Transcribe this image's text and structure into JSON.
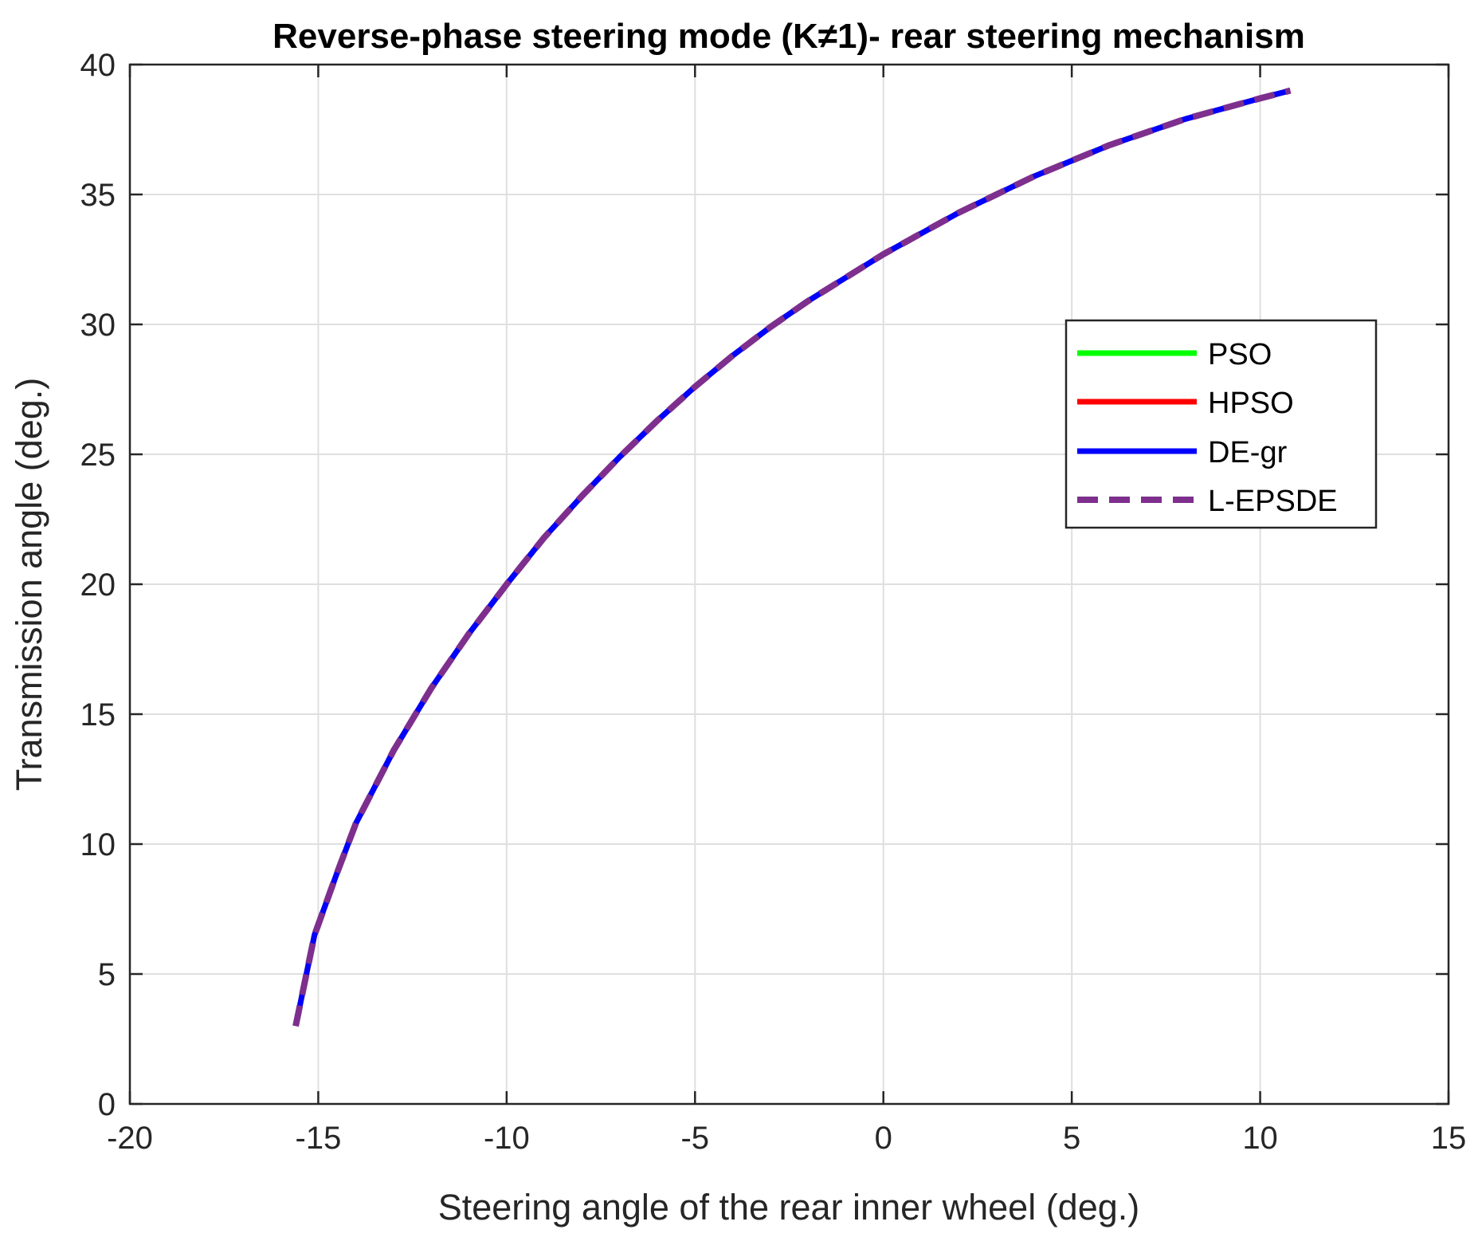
{
  "chart_data": {
    "type": "line",
    "title": "Reverse-phase steering mode (K≠1)- rear steering mechanism",
    "xlabel": "Steering angle of the rear inner wheel (deg.)",
    "ylabel": "Transmission angle (deg.)",
    "xlim": [
      -20,
      15
    ],
    "ylim": [
      0,
      40
    ],
    "xticks": [
      -20,
      -15,
      -10,
      -5,
      0,
      5,
      10,
      15
    ],
    "yticks": [
      0,
      5,
      10,
      15,
      20,
      25,
      30,
      35,
      40
    ],
    "xtick_labels": [
      "-20",
      "-15",
      "-10",
      "-5",
      "0",
      "5",
      "10",
      "15"
    ],
    "ytick_labels": [
      "0",
      "5",
      "10",
      "15",
      "20",
      "25",
      "30",
      "35",
      "40"
    ],
    "grid": true,
    "legend_position": "upper-right",
    "x": [
      -15.6,
      -15.1,
      -14.5,
      -14.0,
      -13.0,
      -12.0,
      -11.0,
      -10.0,
      -9.0,
      -8.0,
      -7.0,
      -6.0,
      -5.0,
      -4.0,
      -3.0,
      -2.0,
      -1.0,
      0.0,
      1.0,
      2.0,
      3.0,
      4.0,
      5.0,
      6.0,
      7.0,
      8.0,
      9.0,
      10.0,
      10.8
    ],
    "series": [
      {
        "name": "PSO",
        "color": "#00ff00",
        "style": "solid",
        "values": [
          3.0,
          6.5,
          8.9,
          10.8,
          13.6,
          16.0,
          18.1,
          20.0,
          21.8,
          23.4,
          24.9,
          26.3,
          27.6,
          28.8,
          29.9,
          30.9,
          31.8,
          32.7,
          33.5,
          34.3,
          35.0,
          35.7,
          36.3,
          36.9,
          37.4,
          37.9,
          38.3,
          38.7,
          39.0
        ]
      },
      {
        "name": "HPSO",
        "color": "#ff0000",
        "style": "solid",
        "values": [
          3.0,
          6.5,
          8.9,
          10.8,
          13.6,
          16.0,
          18.1,
          20.0,
          21.8,
          23.4,
          24.9,
          26.3,
          27.6,
          28.8,
          29.9,
          30.9,
          31.8,
          32.7,
          33.5,
          34.3,
          35.0,
          35.7,
          36.3,
          36.9,
          37.4,
          37.9,
          38.3,
          38.7,
          39.0
        ]
      },
      {
        "name": "DE-gr",
        "color": "#0000ff",
        "style": "solid",
        "values": [
          3.0,
          6.5,
          8.9,
          10.8,
          13.6,
          16.0,
          18.1,
          20.0,
          21.8,
          23.4,
          24.9,
          26.3,
          27.6,
          28.8,
          29.9,
          30.9,
          31.8,
          32.7,
          33.5,
          34.3,
          35.0,
          35.7,
          36.3,
          36.9,
          37.4,
          37.9,
          38.3,
          38.7,
          39.0
        ]
      },
      {
        "name": "L-EPSDE",
        "color": "#7e2f8e",
        "style": "dashed",
        "values": [
          3.0,
          6.5,
          8.9,
          10.8,
          13.6,
          16.0,
          18.1,
          20.0,
          21.8,
          23.4,
          24.9,
          26.3,
          27.6,
          28.8,
          29.9,
          30.9,
          31.8,
          32.7,
          33.5,
          34.3,
          35.0,
          35.7,
          36.3,
          36.9,
          37.4,
          37.9,
          38.3,
          38.7,
          39.0
        ]
      }
    ]
  }
}
